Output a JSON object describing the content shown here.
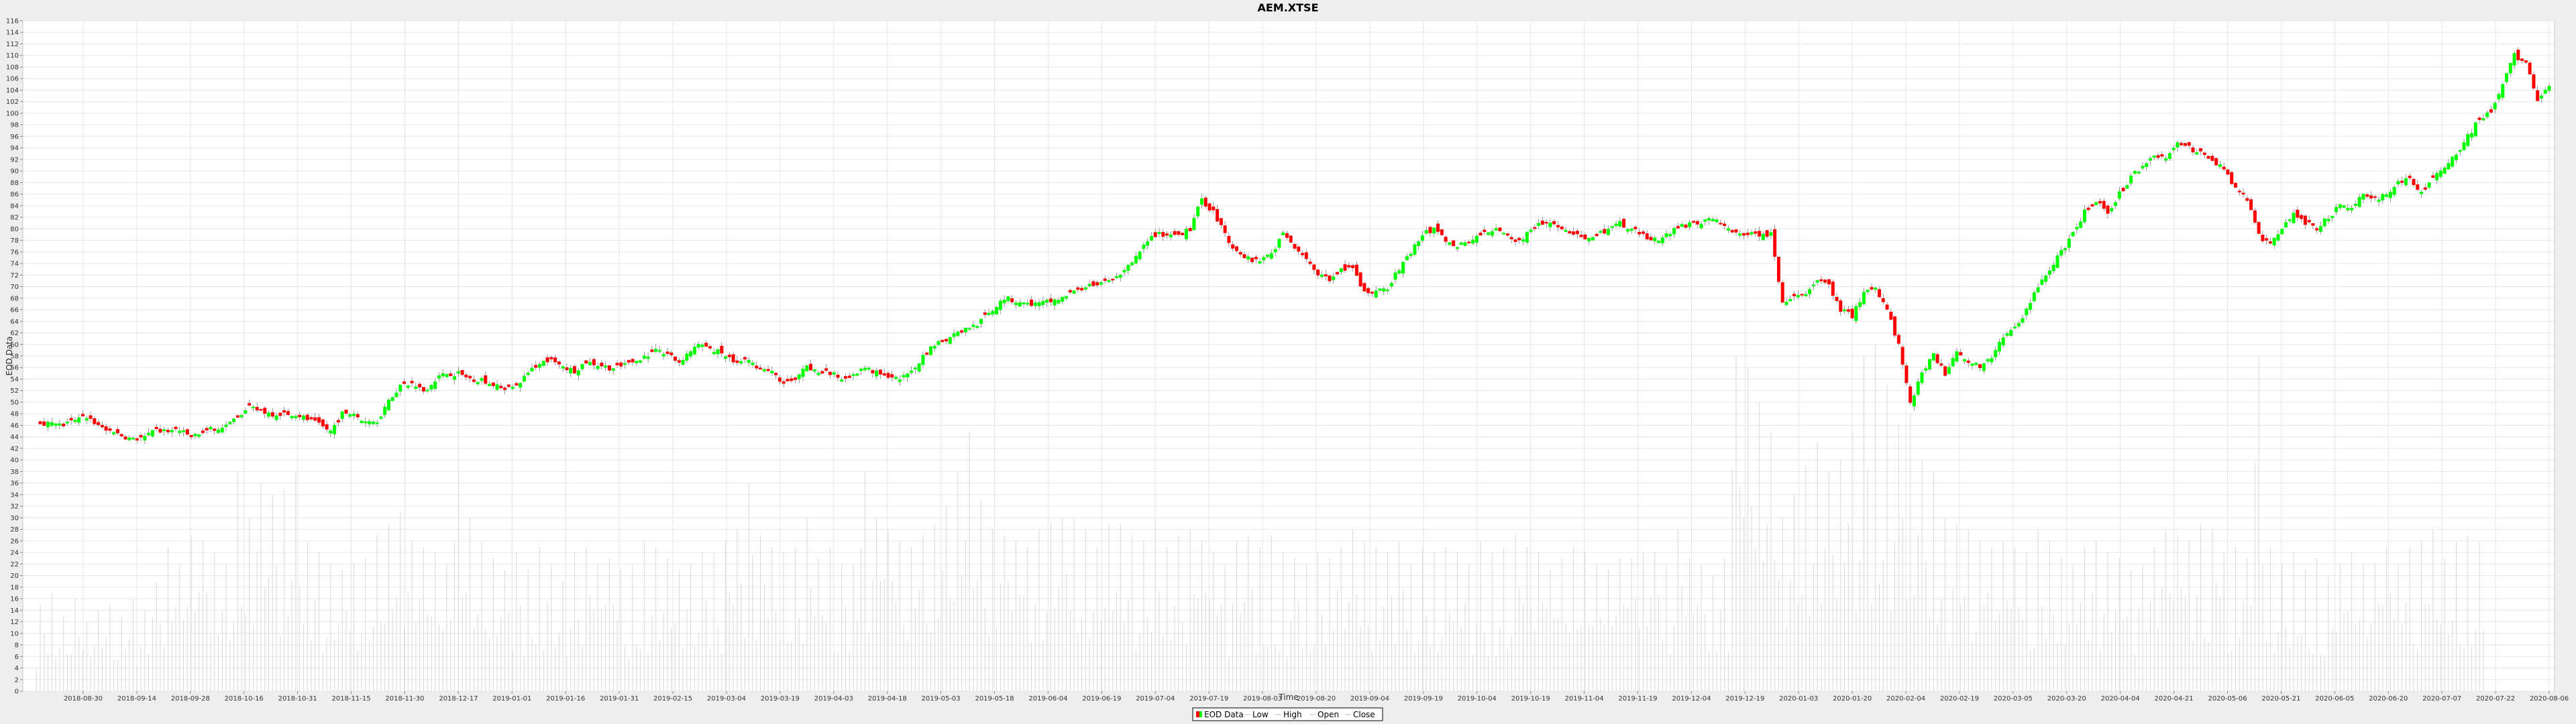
{
  "chart_data": {
    "type": "candlestick",
    "title": "AEM.XTSE",
    "xlabel": "Time",
    "ylabel": "EOD Data",
    "ylim": [
      0,
      116
    ],
    "y_tick_step": 2,
    "grid": true,
    "legend_position": "bottom",
    "legend": [
      "EOD Data",
      "Low",
      "High",
      "Open",
      "Close"
    ],
    "colors": {
      "up": "#00ff00",
      "down": "#ff0000",
      "volume": "#d8d8d8",
      "grid": "#e6e6e6",
      "plot_bg": "#ffffff",
      "page_bg": "#eeeeee"
    },
    "x_ticks": [
      "2018-08-30",
      "2018-09-14",
      "2018-09-28",
      "2018-10-16",
      "2018-10-31",
      "2018-11-15",
      "2018-11-30",
      "2018-12-17",
      "2019-01-01",
      "2019-01-16",
      "2019-01-31",
      "2019-02-15",
      "2019-03-04",
      "2019-03-19",
      "2019-04-03",
      "2019-04-18",
      "2019-05-03",
      "2019-05-18",
      "2019-06-04",
      "2019-06-19",
      "2019-07-04",
      "2019-07-19",
      "2019-08-03",
      "2019-08-20",
      "2019-09-04",
      "2019-09-19",
      "2019-10-04",
      "2019-10-19",
      "2019-11-04",
      "2019-11-19",
      "2019-12-04",
      "2019-12-19",
      "2020-01-03",
      "2020-01-20",
      "2020-02-04",
      "2020-02-19",
      "2020-03-05",
      "2020-03-20",
      "2020-04-04",
      "2020-04-21",
      "2020-05-06",
      "2020-05-21",
      "2020-06-05",
      "2020-06-20",
      "2020-07-07",
      "2020-07-22",
      "2020-08-06"
    ],
    "close_path": [
      [
        0,
        46.5
      ],
      [
        2,
        46
      ],
      [
        4,
        47.5
      ],
      [
        5,
        46
      ],
      [
        6,
        45
      ],
      [
        8,
        43.5
      ],
      [
        9,
        44
      ],
      [
        10,
        45
      ],
      [
        12,
        45
      ],
      [
        13,
        44
      ],
      [
        15,
        45.5
      ],
      [
        16,
        46
      ],
      [
        17,
        47
      ],
      [
        18,
        49
      ],
      [
        19,
        48.5
      ],
      [
        20,
        48
      ],
      [
        21,
        48
      ],
      [
        22,
        48
      ],
      [
        23,
        47
      ],
      [
        24,
        46
      ],
      [
        25,
        45
      ],
      [
        26,
        48
      ],
      [
        27,
        48.5
      ],
      [
        28,
        46.5
      ],
      [
        29,
        47
      ],
      [
        30,
        50
      ],
      [
        31,
        53
      ],
      [
        32,
        53
      ],
      [
        33,
        52
      ],
      [
        34,
        54
      ],
      [
        35,
        55
      ],
      [
        36,
        55
      ],
      [
        37,
        54
      ],
      [
        38,
        54
      ],
      [
        39,
        53
      ],
      [
        40,
        52
      ],
      [
        41,
        53
      ],
      [
        42,
        55
      ],
      [
        43,
        57
      ],
      [
        44,
        57
      ],
      [
        45,
        56
      ],
      [
        46,
        55.5
      ],
      [
        47,
        57
      ],
      [
        48,
        56.5
      ],
      [
        49,
        56
      ],
      [
        50,
        56
      ],
      [
        51,
        57
      ],
      [
        52,
        58
      ],
      [
        53,
        59
      ],
      [
        54,
        58
      ],
      [
        55,
        57
      ],
      [
        56,
        59
      ],
      [
        57,
        60
      ],
      [
        58,
        59
      ],
      [
        59,
        58
      ],
      [
        60,
        57
      ],
      [
        61,
        57
      ],
      [
        62,
        56
      ],
      [
        63,
        55
      ],
      [
        64,
        53
      ],
      [
        65,
        54
      ],
      [
        66,
        56
      ],
      [
        67,
        55
      ],
      [
        68,
        55
      ],
      [
        69,
        54
      ],
      [
        70,
        55
      ],
      [
        71,
        56
      ],
      [
        72,
        55
      ],
      [
        73,
        54
      ],
      [
        74,
        54
      ],
      [
        75,
        55
      ],
      [
        76,
        58
      ],
      [
        77,
        60
      ],
      [
        78,
        61
      ],
      [
        79,
        62
      ],
      [
        80,
        63
      ],
      [
        81,
        64
      ],
      [
        82,
        66
      ],
      [
        83,
        68
      ],
      [
        84,
        67.5
      ],
      [
        85,
        67
      ],
      [
        86,
        67
      ],
      [
        87,
        67.5
      ],
      [
        88,
        68
      ],
      [
        89,
        69
      ],
      [
        90,
        70
      ],
      [
        91,
        70
      ],
      [
        92,
        71
      ],
      [
        93,
        72
      ],
      [
        94,
        74
      ],
      [
        95,
        77
      ],
      [
        96,
        79
      ],
      [
        97,
        79
      ],
      [
        98,
        79
      ],
      [
        99,
        80
      ],
      [
        100,
        85
      ],
      [
        101,
        83
      ],
      [
        102,
        79
      ],
      [
        103,
        76
      ],
      [
        104,
        75
      ],
      [
        105,
        74
      ],
      [
        106,
        76
      ],
      [
        107,
        79
      ],
      [
        108,
        77
      ],
      [
        109,
        75
      ],
      [
        110,
        72
      ],
      [
        111,
        71
      ],
      [
        112,
        73
      ],
      [
        113,
        73
      ],
      [
        114,
        69
      ],
      [
        115,
        69
      ],
      [
        116,
        70
      ],
      [
        117,
        73
      ],
      [
        118,
        76
      ],
      [
        119,
        79
      ],
      [
        120,
        80
      ],
      [
        121,
        78
      ],
      [
        122,
        77
      ],
      [
        123,
        78
      ],
      [
        124,
        79
      ],
      [
        125,
        80
      ],
      [
        126,
        79
      ],
      [
        127,
        78
      ],
      [
        128,
        79
      ],
      [
        129,
        81
      ],
      [
        130,
        81
      ],
      [
        131,
        80
      ],
      [
        132,
        79
      ],
      [
        133,
        78
      ],
      [
        134,
        79
      ],
      [
        135,
        80
      ],
      [
        136,
        81
      ],
      [
        137,
        80
      ],
      [
        138,
        79
      ],
      [
        139,
        78
      ],
      [
        140,
        79
      ],
      [
        141,
        80
      ],
      [
        142,
        81
      ],
      [
        143,
        81
      ],
      [
        144,
        82
      ],
      [
        145,
        80
      ],
      [
        146,
        79
      ],
      [
        147,
        79
      ],
      [
        148,
        79
      ],
      [
        149,
        79
      ],
      [
        150,
        67
      ],
      [
        151,
        68
      ],
      [
        152,
        69
      ],
      [
        153,
        71
      ],
      [
        154,
        70
      ],
      [
        155,
        66
      ],
      [
        156,
        65
      ],
      [
        157,
        69
      ],
      [
        158,
        70
      ],
      [
        159,
        66
      ],
      [
        160,
        60
      ],
      [
        161,
        50
      ],
      [
        162,
        55
      ],
      [
        163,
        58
      ],
      [
        164,
        55
      ],
      [
        165,
        59
      ],
      [
        166,
        57
      ],
      [
        167,
        56
      ],
      [
        168,
        58
      ],
      [
        169,
        61
      ],
      [
        170,
        63
      ],
      [
        171,
        66
      ],
      [
        172,
        70
      ],
      [
        173,
        73
      ],
      [
        174,
        76
      ],
      [
        175,
        79
      ],
      [
        176,
        83
      ],
      [
        177,
        85
      ],
      [
        178,
        83
      ],
      [
        179,
        86
      ],
      [
        180,
        89
      ],
      [
        181,
        91
      ],
      [
        182,
        93
      ],
      [
        183,
        92
      ],
      [
        184,
        95
      ],
      [
        185,
        94
      ],
      [
        186,
        93
      ],
      [
        187,
        92
      ],
      [
        188,
        90
      ],
      [
        189,
        87
      ],
      [
        190,
        85
      ],
      [
        191,
        79
      ],
      [
        192,
        77
      ],
      [
        193,
        80
      ],
      [
        194,
        83
      ],
      [
        195,
        81
      ],
      [
        196,
        80
      ],
      [
        197,
        82
      ],
      [
        198,
        84
      ],
      [
        199,
        84
      ],
      [
        200,
        86
      ],
      [
        201,
        85
      ],
      [
        202,
        86
      ],
      [
        203,
        88
      ],
      [
        204,
        89
      ],
      [
        205,
        86
      ],
      [
        206,
        89
      ],
      [
        207,
        91
      ],
      [
        208,
        93
      ],
      [
        209,
        96
      ],
      [
        210,
        99
      ],
      [
        211,
        100
      ],
      [
        212,
        105
      ],
      [
        213,
        110
      ],
      [
        214,
        109
      ],
      [
        215,
        102
      ],
      [
        216,
        105
      ]
    ],
    "volume_peaks": [
      15,
      17,
      13,
      16,
      12,
      14,
      15,
      13,
      16,
      14,
      19,
      25,
      22,
      27,
      26,
      24,
      22,
      38,
      30,
      36,
      34,
      35,
      38,
      26,
      24,
      22,
      21,
      22,
      23,
      27,
      29,
      31,
      26,
      25,
      24,
      22,
      38,
      30,
      26,
      23,
      21,
      24,
      21,
      25,
      22,
      19,
      24,
      25,
      22,
      23,
      21,
      22,
      26,
      25,
      23,
      21,
      22,
      24,
      24,
      26,
      28,
      36,
      27,
      25,
      24,
      25,
      30,
      23,
      25,
      22,
      22,
      38,
      30,
      28,
      26,
      25,
      27,
      29,
      32,
      38,
      45,
      33,
      28,
      27,
      26,
      25,
      28,
      29,
      30,
      30,
      28,
      25,
      29,
      29,
      27,
      26,
      30,
      25,
      27,
      28,
      26,
      24,
      22,
      26,
      27,
      25,
      27,
      24,
      23,
      22,
      24,
      23,
      25,
      28,
      26,
      25,
      24,
      26,
      22,
      25,
      24,
      25,
      24,
      22,
      26,
      24,
      25,
      27,
      25,
      24,
      21,
      23,
      25,
      24,
      22,
      21,
      23,
      23,
      24,
      24,
      22,
      28,
      23,
      22,
      20,
      23,
      58,
      56,
      50,
      45,
      30,
      34,
      39,
      43,
      38,
      40,
      45,
      58,
      60,
      53,
      46,
      48,
      40,
      38,
      30,
      29,
      28,
      26,
      25,
      26,
      25,
      24,
      28,
      26,
      23,
      22,
      25,
      26,
      24,
      23,
      21,
      22,
      25,
      28,
      27,
      26,
      29,
      28,
      24,
      25,
      23,
      58,
      25,
      22,
      24,
      21,
      23,
      20,
      22,
      24,
      22,
      22,
      25,
      22,
      25,
      26,
      28,
      23,
      26,
      27,
      26
    ]
  }
}
